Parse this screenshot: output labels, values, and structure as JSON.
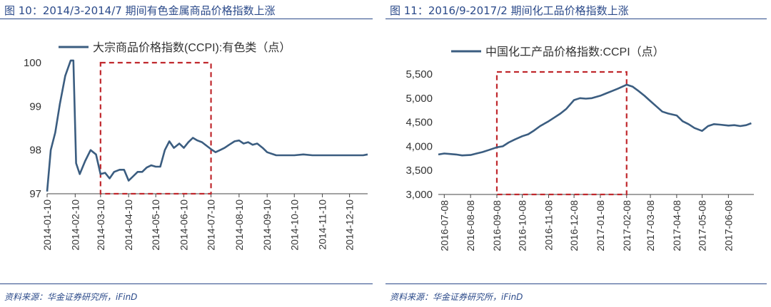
{
  "panels": {
    "left": {
      "figure_title": "图 10：2014/3-2014/7 期间有色金属商品价格指数上涨",
      "source": "资料来源：华金证券研究所，iFinD"
    },
    "right": {
      "figure_title": "图 11：2016/9-2017/2 期间化工品价格指数上涨",
      "source": "资料来源：华金证券研究所，iFinD"
    }
  },
  "colors": {
    "line": "#3b5d80",
    "highlight_box": "#c0282d",
    "title": "#2b4a8a"
  },
  "chart_data": [
    {
      "type": "line",
      "legend": "大宗商品价格指数(CCPI):有色类（点）",
      "ylim": [
        97,
        100
      ],
      "y_ticks": [
        "97",
        "98",
        "99",
        "100"
      ],
      "x_ticks": [
        "2014-01-10",
        "2014-02-10",
        "2014-03-10",
        "2014-04-10",
        "2014-05-10",
        "2014-06-10",
        "2014-07-10",
        "2014-08-10",
        "2014-09-10",
        "2014-10-10",
        "2014-11-10",
        "2014-12-10"
      ],
      "highlight": {
        "x": [
          "2014-03-10",
          "2014-07-10"
        ],
        "y": [
          97,
          100
        ]
      },
      "x": [
        "2014-01-10",
        "2014-01-14",
        "2014-01-19",
        "2014-01-24",
        "2014-01-30",
        "2014-02-05",
        "2014-02-08",
        "2014-02-11",
        "2014-02-15",
        "2014-02-21",
        "2014-02-27",
        "2014-03-05",
        "2014-03-10",
        "2014-03-15",
        "2014-03-20",
        "2014-03-25",
        "2014-03-31",
        "2014-04-05",
        "2014-04-10",
        "2014-04-15",
        "2014-04-20",
        "2014-04-25",
        "2014-04-30",
        "2014-05-05",
        "2014-05-10",
        "2014-05-15",
        "2014-05-20",
        "2014-05-25",
        "2014-05-30",
        "2014-06-05",
        "2014-06-10",
        "2014-06-15",
        "2014-06-20",
        "2014-06-25",
        "2014-06-30",
        "2014-07-05",
        "2014-07-10",
        "2014-07-15",
        "2014-07-20",
        "2014-07-25",
        "2014-07-30",
        "2014-08-05",
        "2014-08-10",
        "2014-08-15",
        "2014-08-20",
        "2014-08-25",
        "2014-08-30",
        "2014-09-05",
        "2014-09-10",
        "2014-09-20",
        "2014-09-30",
        "2014-10-10",
        "2014-10-20",
        "2014-10-30",
        "2014-11-05",
        "2014-11-10",
        "2014-11-15",
        "2014-11-20",
        "2014-11-25",
        "2014-11-30",
        "2014-12-05",
        "2014-12-10",
        "2014-12-15",
        "2014-12-20",
        "2014-12-25",
        "2014-12-30"
      ],
      "y": [
        97.05,
        98.0,
        98.4,
        99.05,
        99.7,
        100.05,
        100.05,
        97.7,
        97.45,
        97.75,
        98.0,
        97.9,
        97.45,
        97.48,
        97.35,
        97.5,
        97.55,
        97.55,
        97.3,
        97.4,
        97.5,
        97.5,
        97.6,
        97.65,
        97.62,
        97.62,
        98.0,
        98.2,
        98.05,
        98.15,
        98.05,
        98.18,
        98.28,
        98.22,
        98.18,
        98.1,
        98.02,
        97.95,
        98.0,
        98.05,
        98.12,
        98.2,
        98.22,
        98.15,
        98.18,
        98.12,
        98.15,
        98.05,
        97.95,
        97.88,
        97.88,
        97.88,
        97.9,
        97.88,
        97.88,
        97.88,
        97.88,
        97.88,
        97.88,
        97.88,
        97.88,
        97.88,
        97.88,
        97.88,
        97.88,
        97.9
      ]
    },
    {
      "type": "line",
      "legend": "中国化工产品价格指数:CCPI（点）",
      "ylim": [
        3000,
        5500
      ],
      "y_ticks": [
        "3,000",
        "3,500",
        "4,000",
        "4,500",
        "5,000",
        "5,500"
      ],
      "x_ticks": [
        "2016-07-08",
        "2016-08-08",
        "2016-09-08",
        "2016-10-08",
        "2016-11-08",
        "2016-12-08",
        "2017-01-08",
        "2017-02-08",
        "2017-03-08",
        "2017-04-08",
        "2017-05-08",
        "2017-06-08"
      ],
      "highlight": {
        "x": [
          "2016-09-08",
          "2017-02-08"
        ],
        "y": [
          3000,
          5500
        ]
      },
      "x": [
        "2016-07-01",
        "2016-07-08",
        "2016-07-15",
        "2016-07-22",
        "2016-07-29",
        "2016-08-08",
        "2016-08-15",
        "2016-08-22",
        "2016-08-29",
        "2016-09-08",
        "2016-09-15",
        "2016-09-22",
        "2016-09-29",
        "2016-10-08",
        "2016-10-15",
        "2016-10-22",
        "2016-10-29",
        "2016-11-08",
        "2016-11-15",
        "2016-11-22",
        "2016-11-29",
        "2016-12-08",
        "2016-12-15",
        "2016-12-22",
        "2016-12-29",
        "2017-01-08",
        "2017-01-15",
        "2017-01-22",
        "2017-01-29",
        "2017-02-08",
        "2017-02-15",
        "2017-02-22",
        "2017-03-01",
        "2017-03-08",
        "2017-03-15",
        "2017-03-22",
        "2017-03-29",
        "2017-04-08",
        "2017-04-15",
        "2017-04-22",
        "2017-04-29",
        "2017-05-08",
        "2017-05-15",
        "2017-05-22",
        "2017-05-29",
        "2017-06-08",
        "2017-06-15",
        "2017-06-22",
        "2017-06-29",
        "2017-07-05"
      ],
      "y": [
        3830,
        3850,
        3840,
        3830,
        3810,
        3820,
        3850,
        3880,
        3920,
        3980,
        4000,
        4080,
        4140,
        4210,
        4250,
        4330,
        4420,
        4520,
        4600,
        4680,
        4780,
        4960,
        5000,
        4990,
        5000,
        5050,
        5100,
        5150,
        5200,
        5280,
        5240,
        5150,
        5050,
        4940,
        4830,
        4720,
        4680,
        4640,
        4520,
        4460,
        4380,
        4320,
        4420,
        4460,
        4450,
        4430,
        4440,
        4420,
        4440,
        4480
      ]
    }
  ]
}
